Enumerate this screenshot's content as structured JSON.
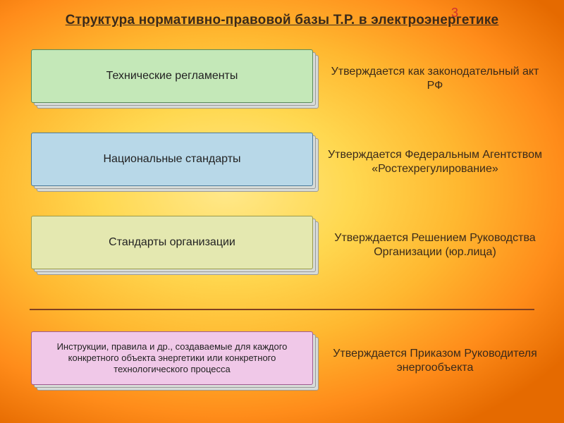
{
  "page_number": "3",
  "title": "Структура нормативно-правовой базы Т.Р. в электроэнергетике",
  "rows": [
    {
      "card": "Технические регламенты",
      "desc": "Утверждается как законодательный акт РФ",
      "shadow_color": "#d8dcd8",
      "front_color": "#c4e8b8",
      "border_color": "#5a8a5a"
    },
    {
      "card": "Национальные стандарты",
      "desc": "Утверждается Федеральным Агентством «Ростехрегулирование»",
      "shadow_color": "#d8dcd8",
      "front_color": "#b8d8e8",
      "border_color": "#4a7a9a"
    },
    {
      "card": "Стандарты организации",
      "desc": "Утверждается Решением Руководства Организации (юр.лица)",
      "shadow_color": "#d8dcd8",
      "front_color": "#e4e8b0",
      "border_color": "#9a9a4a"
    },
    {
      "card": "Инструкции, правила и др., создаваемые для каждого конкретного объекта энергетики или конкретного технологического процесса",
      "desc": "Утверждается Приказом Руководителя энергообъекта",
      "shadow_color": "#d8dcd8",
      "front_color": "#f0c8e8",
      "border_color": "#a05a90",
      "font_size": "13px"
    }
  ],
  "colors": {
    "divider": "#804020",
    "title_color": "#3a2a1a",
    "page_num_color": "#d03030"
  }
}
